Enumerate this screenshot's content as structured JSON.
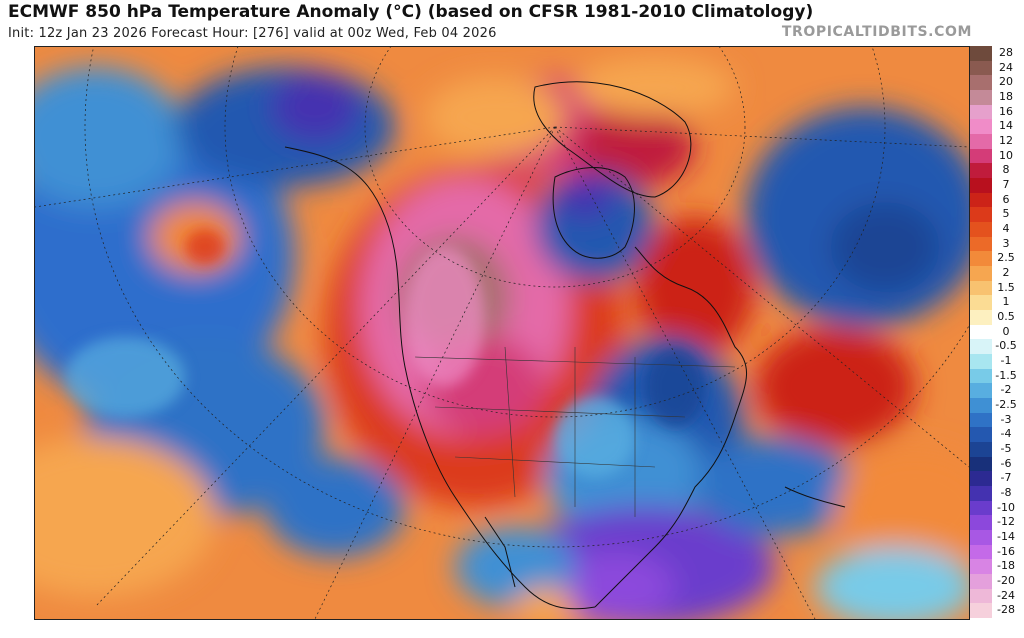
{
  "header": {
    "title": "ECMWF 850 hPa Temperature Anomaly (°C) (based on CFSR 1981-2010 Climatology)",
    "subtitle": "Init: 12z Jan 23 2026   Forecast Hour: [276]   valid at 00z Wed, Feb 04 2026",
    "brand": "TROPICALTIDBITS.COM"
  },
  "legend": {
    "items": [
      {
        "label": "28",
        "color": "#6e4a3c"
      },
      {
        "label": "24",
        "color": "#8a5a50"
      },
      {
        "label": "20",
        "color": "#a86f6e"
      },
      {
        "label": "18",
        "color": "#c48a98"
      },
      {
        "label": "16",
        "color": "#e6a0cc"
      },
      {
        "label": "14",
        "color": "#f08cc8"
      },
      {
        "label": "12",
        "color": "#e46aa8"
      },
      {
        "label": "10",
        "color": "#d43c78"
      },
      {
        "label": "8",
        "color": "#c01c3c"
      },
      {
        "label": "7",
        "color": "#b8101e"
      },
      {
        "label": "6",
        "color": "#cc2318"
      },
      {
        "label": "5",
        "color": "#dc3a1a"
      },
      {
        "label": "4",
        "color": "#e4521e"
      },
      {
        "label": "3",
        "color": "#ec6a28"
      },
      {
        "label": "2.5",
        "color": "#f28a3a"
      },
      {
        "label": "2",
        "color": "#f6a650"
      },
      {
        "label": "1.5",
        "color": "#f8c270"
      },
      {
        "label": "1",
        "color": "#fbdc94"
      },
      {
        "label": "0.5",
        "color": "#fdf0c0"
      },
      {
        "label": "0",
        "color": "#ffffff"
      },
      {
        "label": "-0.5",
        "color": "#d8f4f8"
      },
      {
        "label": "-1",
        "color": "#a8e6f0"
      },
      {
        "label": "-1.5",
        "color": "#78cbe8"
      },
      {
        "label": "-2",
        "color": "#58aee0"
      },
      {
        "label": "-2.5",
        "color": "#3f90d4"
      },
      {
        "label": "-3",
        "color": "#2f72c6"
      },
      {
        "label": "-4",
        "color": "#2458b0"
      },
      {
        "label": "-5",
        "color": "#1c4494"
      },
      {
        "label": "-6",
        "color": "#18307a"
      },
      {
        "label": "-7",
        "color": "#2c2a92"
      },
      {
        "label": "-8",
        "color": "#4432b0"
      },
      {
        "label": "-10",
        "color": "#6a3ccc"
      },
      {
        "label": "-12",
        "color": "#8c48dc"
      },
      {
        "label": "-14",
        "color": "#a858e4"
      },
      {
        "label": "-16",
        "color": "#c46ae8"
      },
      {
        "label": "-18",
        "color": "#d884e4"
      },
      {
        "label": "-20",
        "color": "#e4a0dc"
      },
      {
        "label": "-24",
        "color": "#eeb8d8"
      },
      {
        "label": "-28",
        "color": "#f6d0dc"
      }
    ]
  }
}
